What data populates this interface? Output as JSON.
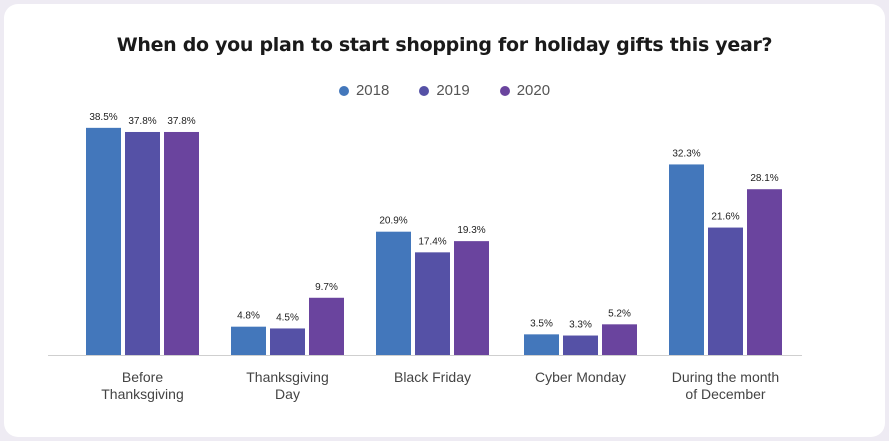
{
  "chart_data": {
    "type": "bar",
    "title": "When do you plan to start shopping for holiday gifts this year?",
    "categories": [
      "Before\nThanksgiving",
      "Thanksgiving\nDay",
      "Black Friday",
      "Cyber Monday",
      "During the month\nof December"
    ],
    "series": [
      {
        "name": "2018",
        "color": "#4377bb",
        "values": [
          38.5,
          4.8,
          20.9,
          3.5,
          32.3
        ],
        "labels": [
          "38.5%",
          "4.8%",
          "20.9%",
          "3.5%",
          "32.3%"
        ]
      },
      {
        "name": "2019",
        "color": "#5551a6",
        "values": [
          37.8,
          4.5,
          17.4,
          3.3,
          21.6
        ],
        "labels": [
          "37.8%",
          "4.5%",
          "17.4%",
          "3.3%",
          "21.6%"
        ]
      },
      {
        "name": "2020",
        "color": "#6a449e",
        "values": [
          37.8,
          9.7,
          19.3,
          5.2,
          28.1
        ],
        "labels": [
          "37.8%",
          "9.7%",
          "19.3%",
          "5.2%",
          "28.1%"
        ]
      }
    ],
    "xlabel": "",
    "ylabel": "",
    "ylim": [
      0,
      40
    ],
    "grid": false,
    "legend": "top-center"
  }
}
